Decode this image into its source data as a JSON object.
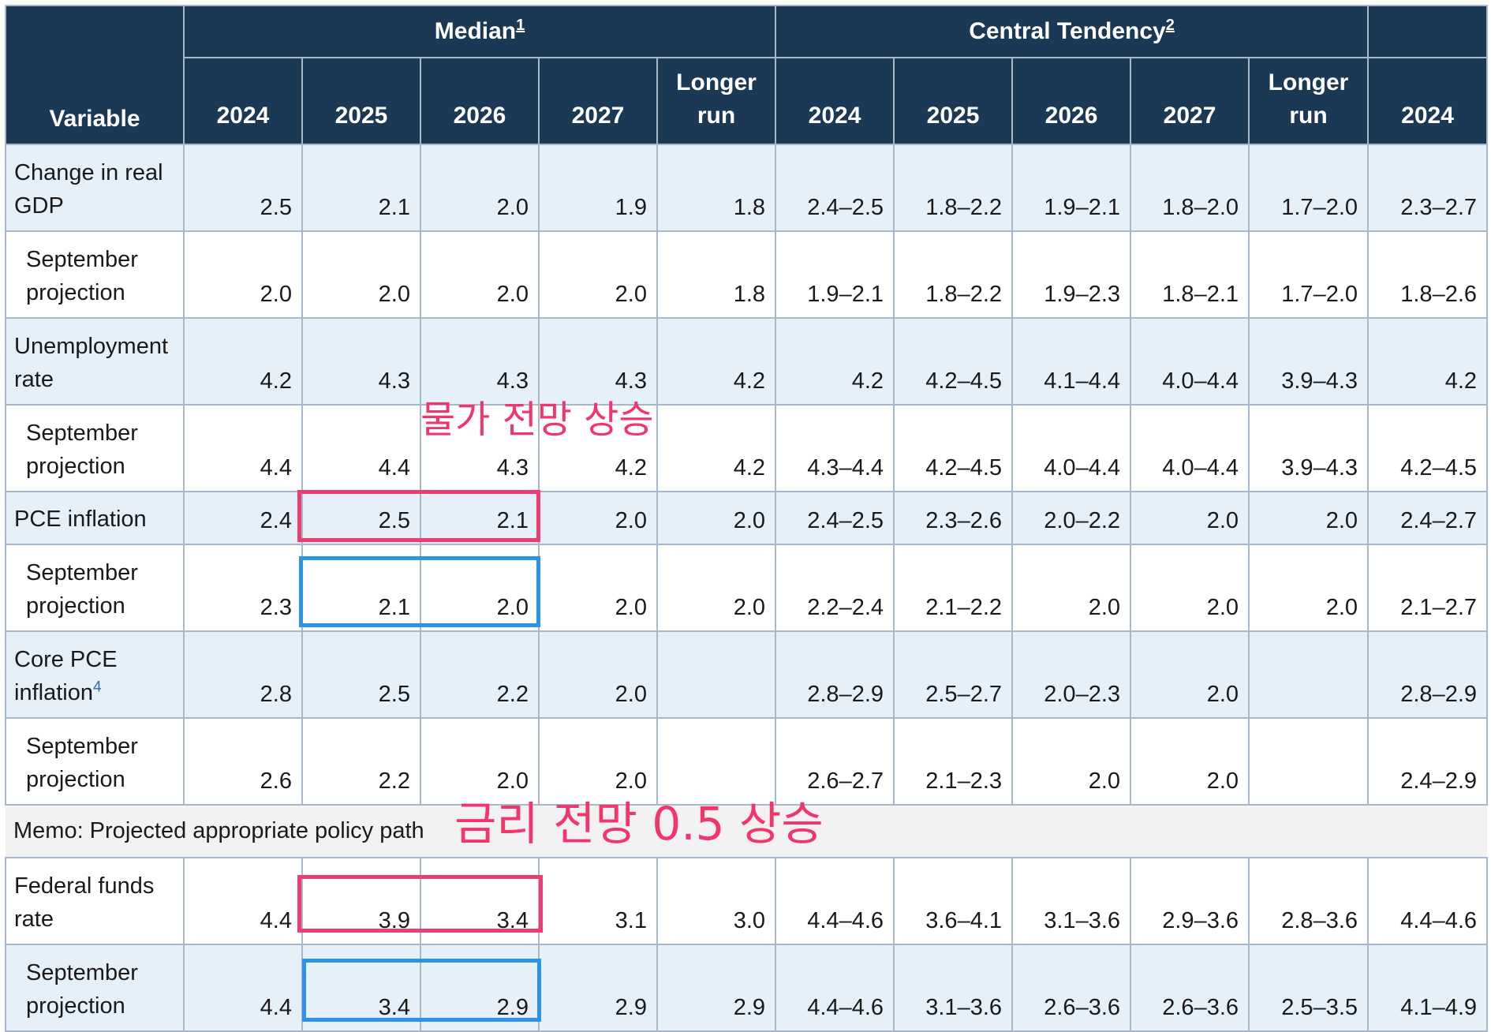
{
  "header": {
    "variable": "Variable",
    "median_label": "Median",
    "median_footnote": "1",
    "central_label": "Central Tendency",
    "central_footnote": "2",
    "years": [
      "2024",
      "2025",
      "2026",
      "2027",
      "Longer run",
      "2024",
      "2025",
      "2026",
      "2027",
      "Longer run",
      "2024"
    ]
  },
  "rows": [
    {
      "label": "Change in real GDP",
      "kind": "main",
      "shade": true,
      "values": [
        "2.5",
        "2.1",
        "2.0",
        "1.9",
        "1.8",
        "2.4–2.5",
        "1.8–2.2",
        "1.9–2.1",
        "1.8–2.0",
        "1.7–2.0",
        "2.3–2.7"
      ]
    },
    {
      "label": "September projection",
      "kind": "sub",
      "shade": false,
      "values": [
        "2.0",
        "2.0",
        "2.0",
        "2.0",
        "1.8",
        "1.9–2.1",
        "1.8–2.2",
        "1.9–2.3",
        "1.8–2.1",
        "1.7–2.0",
        "1.8–2.6"
      ]
    },
    {
      "label": "Unemployment rate",
      "kind": "main",
      "shade": true,
      "values": [
        "4.2",
        "4.3",
        "4.3",
        "4.3",
        "4.2",
        "4.2",
        "4.2–4.5",
        "4.1–4.4",
        "4.0–4.4",
        "3.9–4.3",
        "4.2"
      ]
    },
    {
      "label": "September projection",
      "kind": "sub",
      "shade": false,
      "values": [
        "4.4",
        "4.4",
        "4.3",
        "4.2",
        "4.2",
        "4.3–4.4",
        "4.2–4.5",
        "4.0–4.4",
        "4.0–4.4",
        "3.9–4.3",
        "4.2–4.5"
      ]
    },
    {
      "label": "PCE inflation",
      "kind": "main",
      "shade": true,
      "values": [
        "2.4",
        "2.5",
        "2.1",
        "2.0",
        "2.0",
        "2.4–2.5",
        "2.3–2.6",
        "2.0–2.2",
        "2.0",
        "2.0",
        "2.4–2.7"
      ]
    },
    {
      "label": "September projection",
      "kind": "sub",
      "shade": false,
      "values": [
        "2.3",
        "2.1",
        "2.0",
        "2.0",
        "2.0",
        "2.2–2.4",
        "2.1–2.2",
        "2.0",
        "2.0",
        "2.0",
        "2.1–2.7"
      ]
    },
    {
      "label": "Core PCE inflation",
      "footnote": "4",
      "kind": "main",
      "shade": true,
      "values": [
        "2.8",
        "2.5",
        "2.2",
        "2.0",
        "",
        "2.8–2.9",
        "2.5–2.7",
        "2.0–2.3",
        "2.0",
        "",
        "2.8–2.9"
      ]
    },
    {
      "label": "September projection",
      "kind": "sub",
      "shade": false,
      "values": [
        "2.6",
        "2.2",
        "2.0",
        "2.0",
        "",
        "2.6–2.7",
        "2.1–2.3",
        "2.0",
        "2.0",
        "",
        "2.4–2.9"
      ]
    },
    {
      "label": "Memo: Projected appropriate policy path",
      "kind": "memo",
      "shade": false,
      "values": []
    },
    {
      "label": "Federal funds rate",
      "kind": "main",
      "shade": false,
      "values": [
        "4.4",
        "3.9",
        "3.4",
        "3.1",
        "3.0",
        "4.4–4.6",
        "3.6–4.1",
        "3.1–3.6",
        "2.9–3.6",
        "2.8–3.6",
        "4.4–4.6"
      ]
    },
    {
      "label": "September projection",
      "kind": "sub",
      "shade": true,
      "values": [
        "4.4",
        "3.4",
        "2.9",
        "2.9",
        "2.9",
        "4.4–4.6",
        "3.1–3.6",
        "2.6–3.6",
        "2.6–3.6",
        "2.5–3.5",
        "4.1–4.9"
      ]
    }
  ],
  "annotations": {
    "inflation_note": "물가 전망 상승",
    "rate_note": "금리 전망 0.5 상승"
  },
  "colors": {
    "header_bg": "#1b3855",
    "row_shade": "#e6f0f9",
    "memo_bg": "#f2f2f2",
    "highlight_red": "#ef3d72",
    "highlight_blue": "#2d93e8",
    "annotation_text": "#f2356c"
  }
}
